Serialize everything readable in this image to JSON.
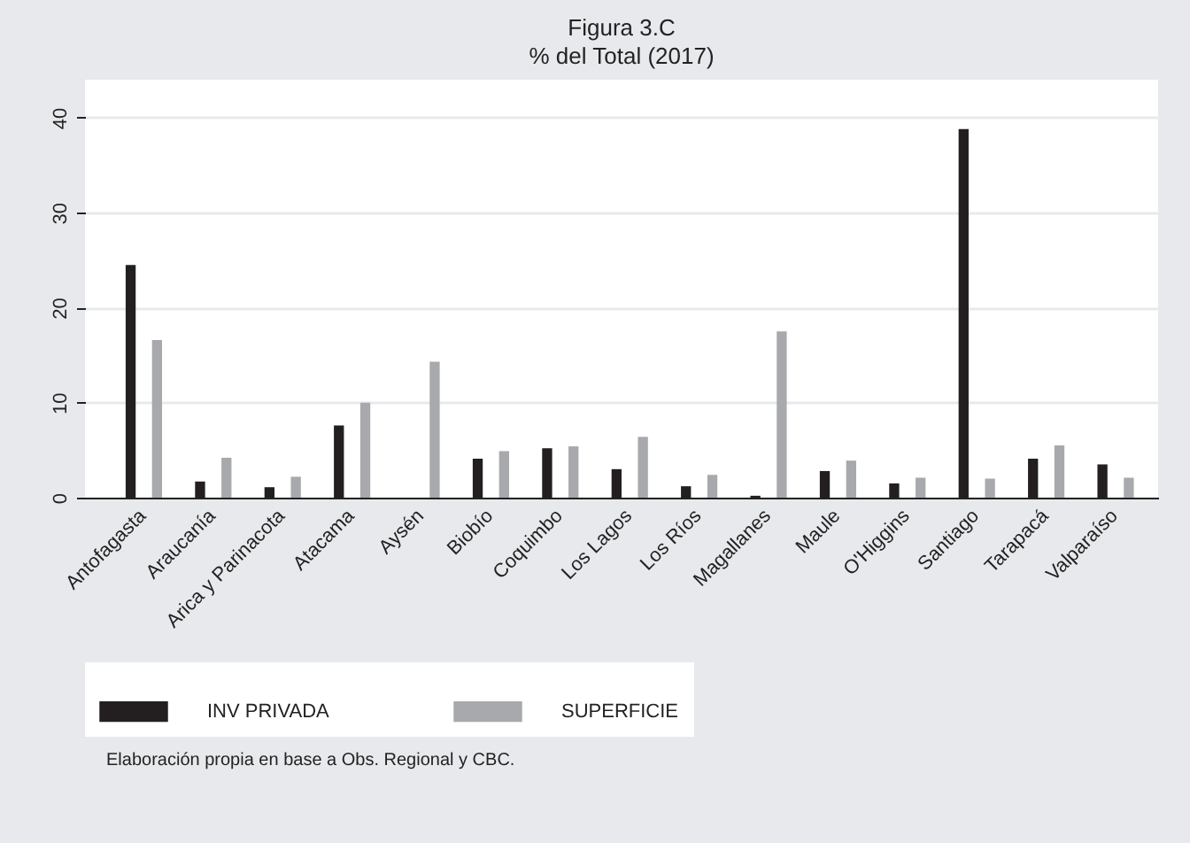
{
  "chart_data": {
    "type": "bar",
    "title": "Figura  3.C",
    "subtitle": "% del Total (2017)",
    "categories": [
      "Antofagasta",
      "Araucanía",
      "Arica y Parinacota",
      "Atacama",
      "Aysén",
      "Biobío",
      "Coquimbo",
      "Los Lagos",
      "Los Ríos",
      "Magallanes",
      "Maule",
      "O'Higgins",
      "Santiago",
      "Tarapacá",
      "Valparaíso"
    ],
    "series": [
      {
        "name": "INV PRIVADA",
        "color": "#231f20",
        "values": [
          24.5,
          1.7,
          1.1,
          7.6,
          0,
          4.1,
          5.2,
          3.0,
          1.2,
          0.2,
          2.8,
          1.5,
          38.8,
          4.1,
          3.5
        ]
      },
      {
        "name": "SUPERFICIE",
        "color": "#a8a9ad",
        "values": [
          16.6,
          4.2,
          2.2,
          10.0,
          14.3,
          4.9,
          5.4,
          6.4,
          2.4,
          17.5,
          3.9,
          2.1,
          2.0,
          5.5,
          2.1
        ]
      }
    ],
    "ylim": [
      0,
      44
    ],
    "yticks": [
      0,
      10,
      20,
      30,
      40
    ],
    "grid": "y",
    "legend": "bottom",
    "annotations": [
      "Elaboración propia en base a Obs. Regional y CBC."
    ]
  }
}
